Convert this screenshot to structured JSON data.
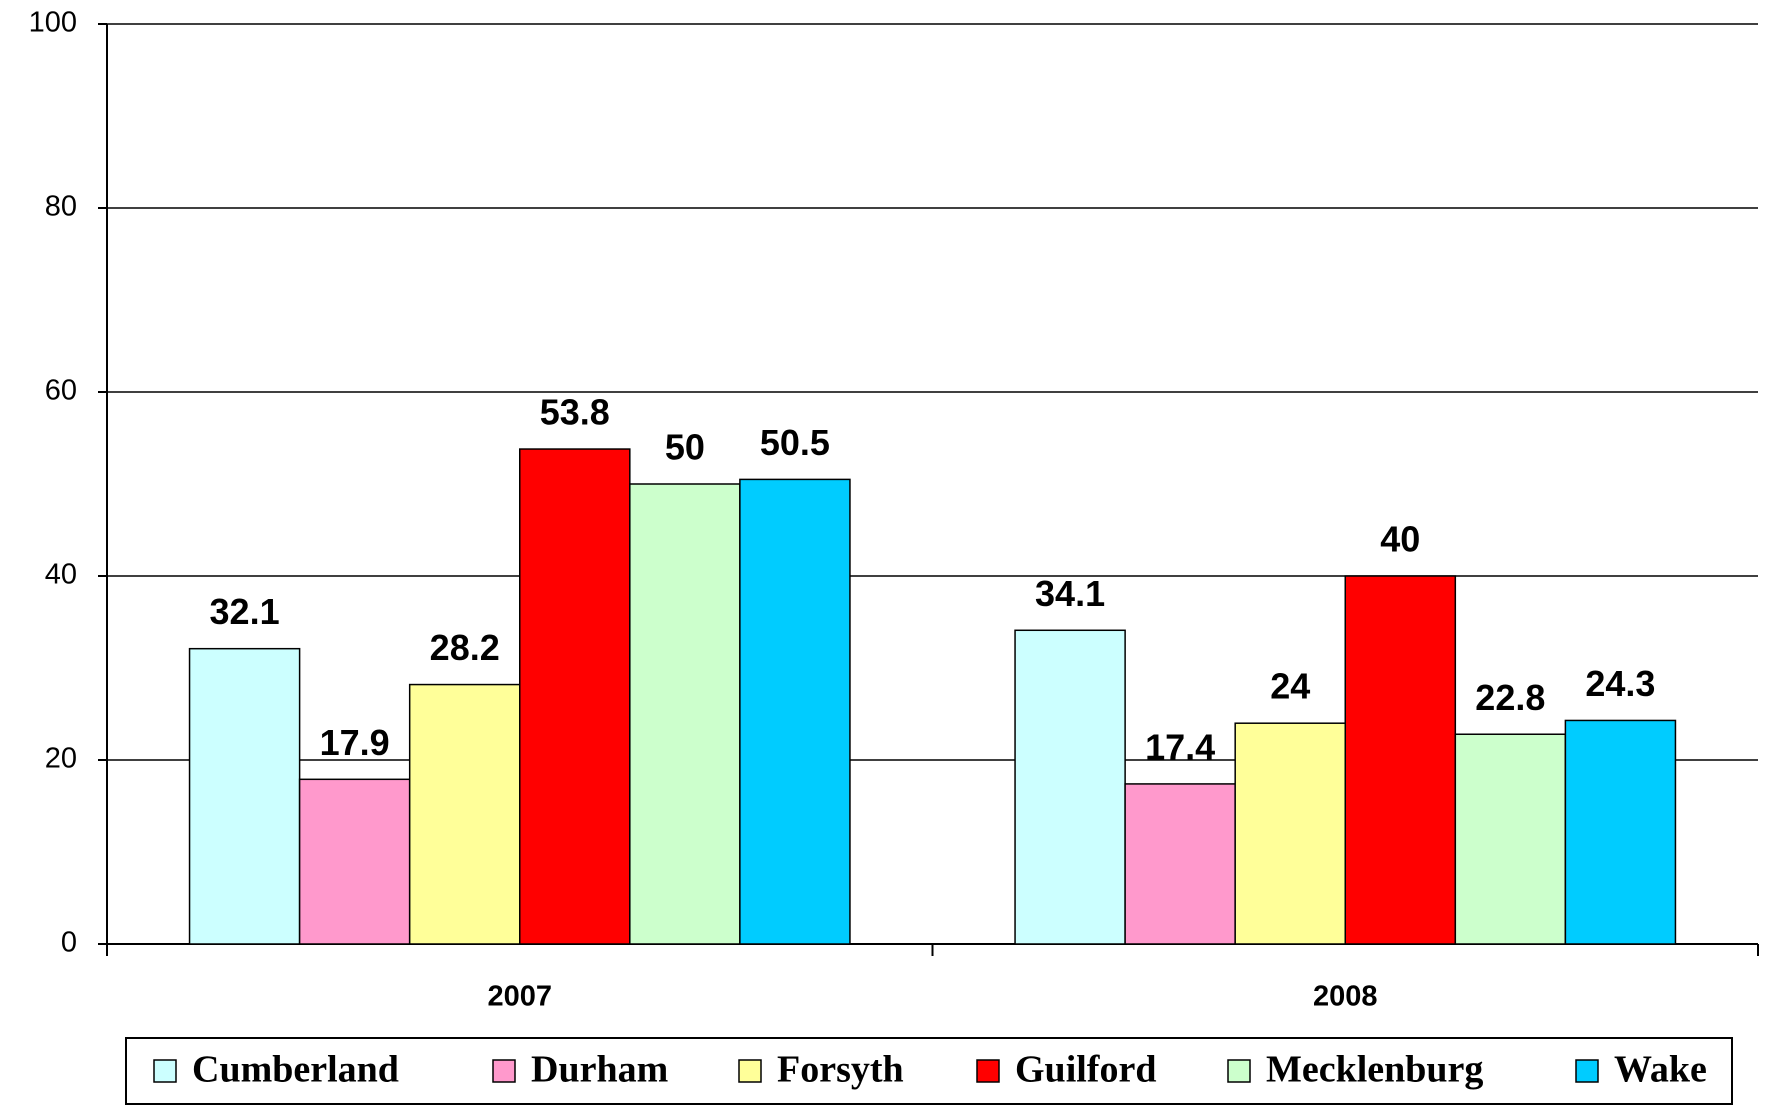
{
  "chart_data": {
    "type": "bar",
    "categories": [
      "2007",
      "2008"
    ],
    "series": [
      {
        "name": "Cumberland",
        "color": "#ccffff",
        "values": [
          32.1,
          34.1
        ]
      },
      {
        "name": "Durham",
        "color": "#ff99cc",
        "values": [
          17.9,
          17.4
        ]
      },
      {
        "name": "Forsyth",
        "color": "#ffff99",
        "values": [
          28.2,
          24
        ]
      },
      {
        "name": "Guilford",
        "color": "#ff0000",
        "values": [
          53.8,
          40
        ]
      },
      {
        "name": "Mecklenburg",
        "color": "#ccffcc",
        "values": [
          50,
          22.8
        ]
      },
      {
        "name": "Wake",
        "color": "#00ccff",
        "values": [
          50.5,
          24.3
        ]
      }
    ],
    "ylim": [
      0,
      100
    ],
    "yticks": [
      0,
      20,
      40,
      60,
      80,
      100
    ],
    "grid": true,
    "legend": "bottom"
  }
}
